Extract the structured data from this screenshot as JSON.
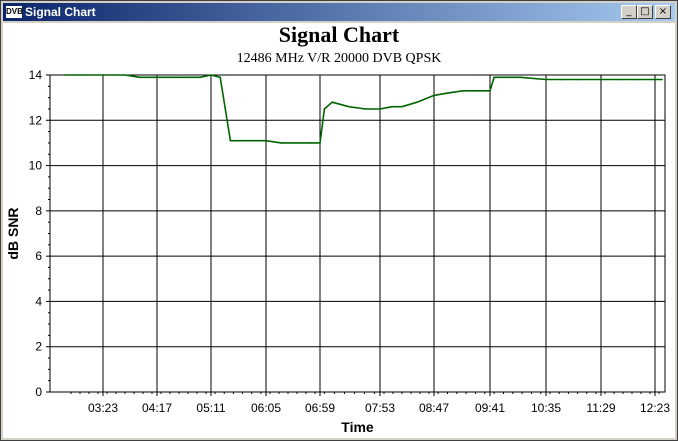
{
  "window": {
    "title": "Signal Chart",
    "icon_text": "DVB",
    "buttons": {
      "minimize": "_",
      "maximize": "□",
      "close": "×"
    }
  },
  "colors": {
    "series": "#006400",
    "titlebar_start": "#0a246a",
    "titlebar_end": "#a6caf0"
  },
  "chart_data": {
    "type": "line",
    "title": "Signal Chart",
    "subtitle": "12486 MHz V/R 20000 DVB QPSK",
    "xlabel": "Time",
    "ylabel": "dB SNR",
    "ylim": [
      0,
      14
    ],
    "yticks": [
      0,
      2,
      4,
      6,
      8,
      10,
      12,
      14
    ],
    "xticks": [
      "03:23",
      "04:17",
      "05:11",
      "06:05",
      "06:59",
      "07:53",
      "08:47",
      "09:41",
      "10:35",
      "11:29",
      "12:23"
    ],
    "grid": true,
    "series": [
      {
        "x": [
          "02:44",
          "03:00",
          "03:23",
          "03:45",
          "04:00",
          "04:17",
          "04:40",
          "05:00",
          "05:11",
          "05:20",
          "05:30",
          "05:40",
          "05:50",
          "06:05",
          "06:20",
          "06:35",
          "06:50",
          "06:59",
          "07:03",
          "07:10",
          "07:25",
          "07:40",
          "07:53",
          "08:05",
          "08:15",
          "08:30",
          "08:47",
          "09:00",
          "09:15",
          "09:30",
          "09:41",
          "09:45",
          "09:55",
          "10:10",
          "10:35",
          "10:50",
          "11:05",
          "11:29",
          "11:50",
          "12:05",
          "12:23",
          "12:30"
        ],
        "values": [
          14.0,
          14.0,
          14.0,
          14.0,
          13.9,
          13.9,
          13.9,
          13.9,
          14.0,
          13.9,
          11.1,
          11.1,
          11.1,
          11.1,
          11.0,
          11.0,
          11.0,
          11.0,
          12.5,
          12.8,
          12.6,
          12.5,
          12.5,
          12.6,
          12.6,
          12.8,
          13.1,
          13.2,
          13.3,
          13.3,
          13.3,
          13.9,
          13.9,
          13.9,
          13.8,
          13.8,
          13.8,
          13.8,
          13.8,
          13.8,
          13.8,
          13.8
        ]
      }
    ]
  }
}
